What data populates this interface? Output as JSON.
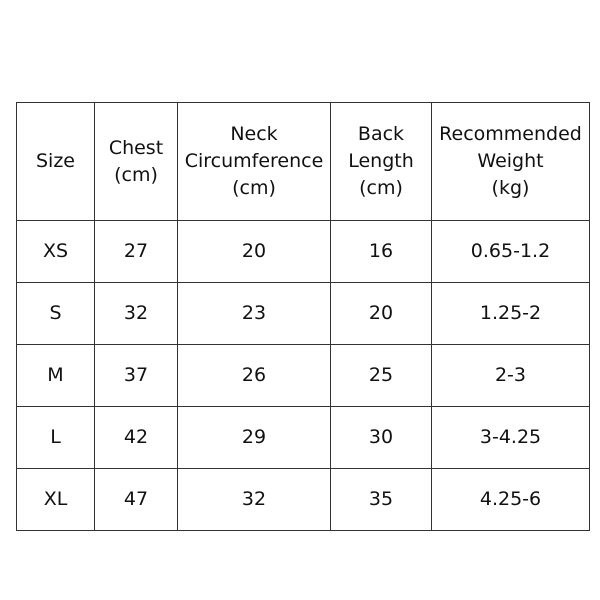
{
  "table": {
    "headers": [
      "Size",
      "Chest\n(cm)",
      "Neck\nCircumference\n(cm)",
      "Back\nLength\n(cm)",
      "Recommended\nWeight\n(kg)"
    ],
    "rows": [
      [
        "XS",
        "27",
        "20",
        "16",
        "0.65-1.2"
      ],
      [
        "S",
        "32",
        "23",
        "20",
        "1.25-2"
      ],
      [
        "M",
        "37",
        "26",
        "25",
        "2-3"
      ],
      [
        "L",
        "42",
        "29",
        "30",
        "3-4.25"
      ],
      [
        "XL",
        "47",
        "32",
        "35",
        "4.25-6"
      ]
    ]
  }
}
